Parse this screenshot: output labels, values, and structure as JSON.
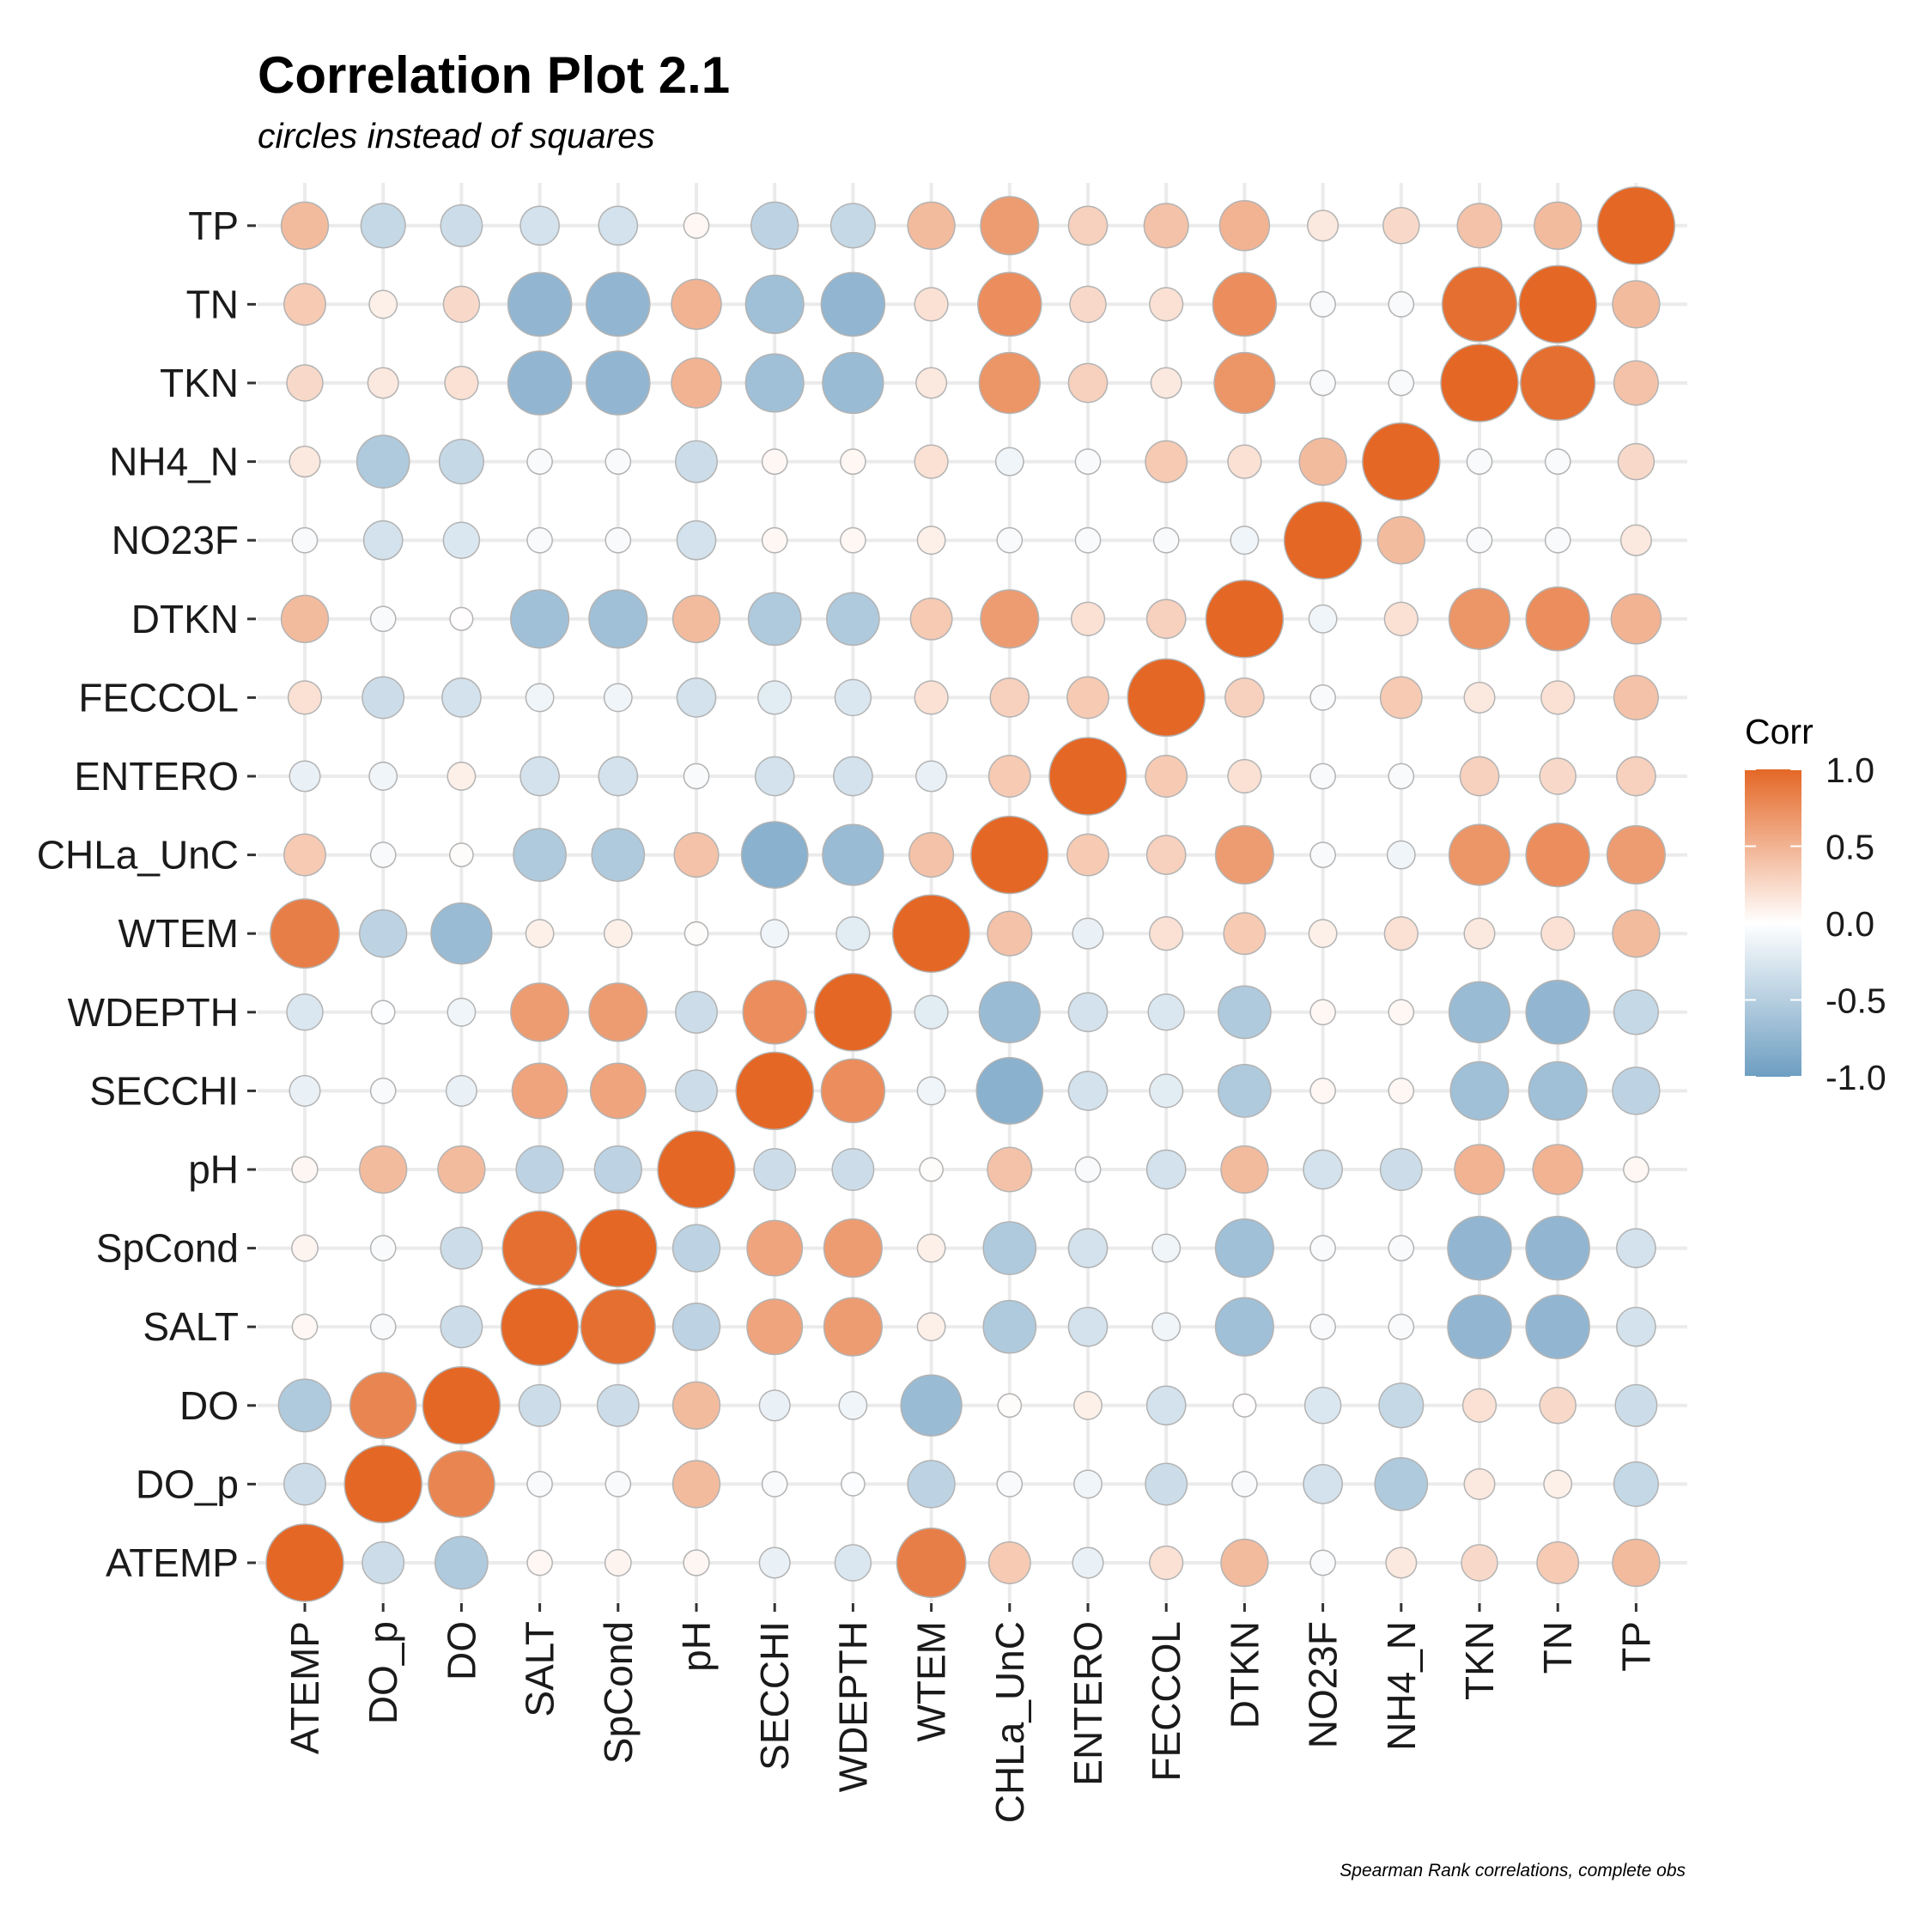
{
  "chart_data": {
    "type": "heatmap",
    "title": "Correlation Plot 2.1",
    "subtitle": "circles instead of squares",
    "caption": "Spearman Rank correlations, complete obs",
    "legend_title": "Corr",
    "legend_ticks": [
      "1.0",
      "0.5",
      "0.0",
      "-0.5",
      "-1.0"
    ],
    "legend_values": [
      1.0,
      0.5,
      0.0,
      -0.5,
      -1.0
    ],
    "colors": {
      "low": "#6D9EC1",
      "mid": "#FFFFFF",
      "high": "#E46726"
    },
    "x_labels": [
      "ATEMP",
      "DO_p",
      "DO",
      "SALT",
      "SpCond",
      "pH",
      "SECCHI",
      "WDEPTH",
      "WTEM",
      "CHLa_UnC",
      "ENTERO",
      "FECCOL",
      "DTKN",
      "NO23F",
      "NH4_N",
      "TKN",
      "TN",
      "TP"
    ],
    "y_labels": [
      "ATEMP",
      "DO_p",
      "DO",
      "SALT",
      "SpCond",
      "pH",
      "SECCHI",
      "WDEPTH",
      "WTEM",
      "CHLa_UnC",
      "ENTERO",
      "FECCOL",
      "DTKN",
      "NO23F",
      "NH4_N",
      "TKN",
      "TN",
      "TP"
    ],
    "value_range": [
      -1,
      1
    ],
    "grid": true,
    "legend_position": "right",
    "values": [
      [
        1.0,
        -0.35,
        -0.55,
        0.05,
        0.07,
        0.06,
        -0.15,
        -0.25,
        0.85,
        0.35,
        -0.15,
        0.2,
        0.45,
        -0.05,
        0.15,
        0.25,
        0.35,
        0.45
      ],
      [
        -0.35,
        1.0,
        0.8,
        -0.05,
        -0.05,
        0.45,
        -0.05,
        -0.02,
        -0.45,
        -0.05,
        -0.1,
        -0.35,
        -0.05,
        -0.3,
        -0.55,
        0.15,
        0.1,
        -0.4
      ],
      [
        -0.55,
        0.8,
        1.0,
        -0.35,
        -0.35,
        0.45,
        -0.15,
        -0.1,
        -0.7,
        0.02,
        0.1,
        -0.3,
        0.01,
        -0.25,
        -0.4,
        0.2,
        0.25,
        -0.35
      ],
      [
        0.05,
        -0.05,
        -0.35,
        1.0,
        0.95,
        -0.45,
        0.6,
        0.65,
        0.1,
        -0.55,
        -0.3,
        -0.1,
        -0.65,
        -0.05,
        -0.05,
        -0.75,
        -0.75,
        -0.3
      ],
      [
        0.07,
        -0.05,
        -0.35,
        0.95,
        1.0,
        -0.45,
        0.6,
        0.65,
        0.1,
        -0.55,
        -0.3,
        -0.1,
        -0.65,
        -0.05,
        -0.05,
        -0.75,
        -0.75,
        -0.3
      ],
      [
        0.06,
        0.45,
        0.45,
        -0.45,
        -0.45,
        1.0,
        -0.35,
        -0.35,
        0.02,
        0.4,
        -0.05,
        -0.3,
        0.45,
        -0.3,
        -0.35,
        0.5,
        0.5,
        0.05
      ],
      [
        -0.15,
        -0.05,
        -0.15,
        0.6,
        0.6,
        -0.35,
        1.0,
        0.75,
        -0.1,
        -0.8,
        -0.3,
        -0.2,
        -0.55,
        0.05,
        0.05,
        -0.65,
        -0.65,
        -0.45
      ],
      [
        -0.25,
        -0.02,
        -0.1,
        0.65,
        0.65,
        -0.35,
        0.75,
        1.0,
        -0.2,
        -0.7,
        -0.3,
        -0.25,
        -0.55,
        0.05,
        0.05,
        -0.7,
        -0.75,
        -0.4
      ],
      [
        0.85,
        -0.45,
        -0.7,
        0.1,
        0.1,
        0.02,
        -0.1,
        -0.2,
        1.0,
        0.4,
        -0.15,
        0.2,
        0.35,
        0.1,
        0.2,
        0.15,
        0.2,
        0.45
      ],
      [
        0.35,
        -0.05,
        0.02,
        -0.55,
        -0.55,
        0.4,
        -0.8,
        -0.7,
        0.4,
        1.0,
        0.35,
        0.3,
        0.65,
        -0.05,
        -0.1,
        0.7,
        0.75,
        0.65
      ],
      [
        -0.15,
        -0.1,
        0.1,
        -0.3,
        -0.3,
        -0.05,
        -0.3,
        -0.3,
        -0.15,
        0.35,
        1.0,
        0.35,
        0.2,
        -0.05,
        -0.05,
        0.3,
        0.25,
        0.3
      ],
      [
        0.2,
        -0.35,
        -0.3,
        -0.1,
        -0.1,
        -0.3,
        -0.2,
        -0.25,
        0.2,
        0.3,
        0.35,
        1.0,
        0.3,
        -0.05,
        0.35,
        0.15,
        0.2,
        0.4
      ],
      [
        0.45,
        -0.05,
        0.01,
        -0.65,
        -0.65,
        0.45,
        -0.55,
        -0.55,
        0.35,
        0.65,
        0.2,
        0.3,
        1.0,
        -0.1,
        0.2,
        0.7,
        0.75,
        0.5
      ],
      [
        -0.05,
        -0.3,
        -0.25,
        -0.05,
        -0.05,
        -0.3,
        0.05,
        0.05,
        0.1,
        -0.05,
        -0.05,
        -0.05,
        -0.1,
        1.0,
        0.45,
        -0.05,
        -0.05,
        0.15
      ],
      [
        0.15,
        -0.55,
        -0.4,
        -0.05,
        -0.05,
        -0.35,
        0.05,
        0.05,
        0.2,
        -0.1,
        -0.05,
        0.35,
        0.2,
        0.45,
        1.0,
        -0.05,
        -0.05,
        0.25
      ],
      [
        0.25,
        0.15,
        0.2,
        -0.75,
        -0.75,
        0.5,
        -0.65,
        -0.7,
        0.15,
        0.7,
        0.3,
        0.15,
        0.7,
        -0.05,
        -0.05,
        1.0,
        0.95,
        0.4
      ],
      [
        0.35,
        0.1,
        0.25,
        -0.75,
        -0.75,
        0.5,
        -0.65,
        -0.75,
        0.2,
        0.75,
        0.25,
        0.2,
        0.75,
        -0.05,
        -0.05,
        0.95,
        1.0,
        0.45
      ],
      [
        0.45,
        -0.4,
        -0.35,
        -0.3,
        -0.3,
        0.05,
        -0.45,
        -0.4,
        0.45,
        0.65,
        0.3,
        0.4,
        0.5,
        0.15,
        0.25,
        0.4,
        0.45,
        1.0
      ]
    ]
  }
}
